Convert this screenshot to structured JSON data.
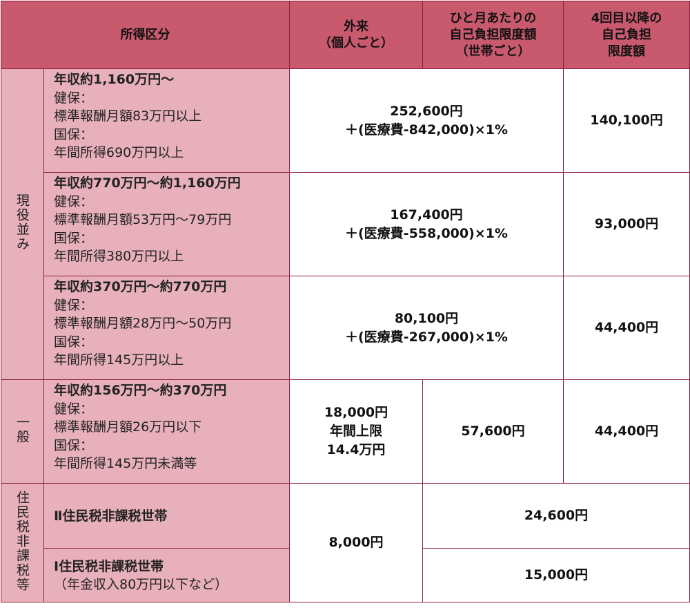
{
  "header": {
    "income": "所得区分",
    "outpatient_l1": "外来",
    "outpatient_l2": "（個人ごと）",
    "monthly_l1": "ひと月あたりの",
    "monthly_l2": "自己負担限度額",
    "monthly_l3": "（世帯ごと）",
    "fourth_l1": "4回目以降の",
    "fourth_l2": "自己負担",
    "fourth_l3": "限度額"
  },
  "groups": {
    "genekinami": "現役並み",
    "ippan": "一般",
    "hikazei": "住民税非課税等"
  },
  "rows": [
    {
      "title": "年収約1,160万円～",
      "l1": "健保：",
      "l2": "標準報酬月額83万円以上",
      "l3": "国保：",
      "l4": "年間所得690万円以上",
      "monthly_1": "252,600円",
      "monthly_2": "＋(医療費-842,000)×1%",
      "fourth": "140,100円"
    },
    {
      "title": "年収約770万円～約1,160万円",
      "l1": "健保：",
      "l2": "標準報酬月額53万円～79万円",
      "l3": "国保：",
      "l4": "年間所得380万円以上",
      "monthly_1": "167,400円",
      "monthly_2": "＋(医療費-558,000)×1%",
      "fourth": "93,000円"
    },
    {
      "title": "年収約370万円～約770万円",
      "l1": "健保：",
      "l2": "標準報酬月額28万円～50万円",
      "l3": "国保：",
      "l4": "年間所得145万円以上",
      "monthly_1": "80,100円",
      "monthly_2": "＋(医療費-267,000)×1%",
      "fourth": "44,400円"
    },
    {
      "title": "年収約156万円～約370万円",
      "l1": "健保：",
      "l2": "標準報酬月額26万円以下",
      "l3": "国保：",
      "l4": "年間所得145万円未満等",
      "outpatient_1": "18,000円",
      "outpatient_2": "年間上限",
      "outpatient_3": "14.4万円",
      "monthly": "57,600円",
      "fourth": "44,400円"
    }
  ],
  "low_income": {
    "row2_title": "Ⅱ住民税非課税世帯",
    "row1_title": "Ⅰ住民税非課税世帯",
    "row1_note": "（年金収入80万円以下など）",
    "outpatient": "8,000円",
    "row2_monthly": "24,600円",
    "row1_monthly": "15,000円"
  }
}
